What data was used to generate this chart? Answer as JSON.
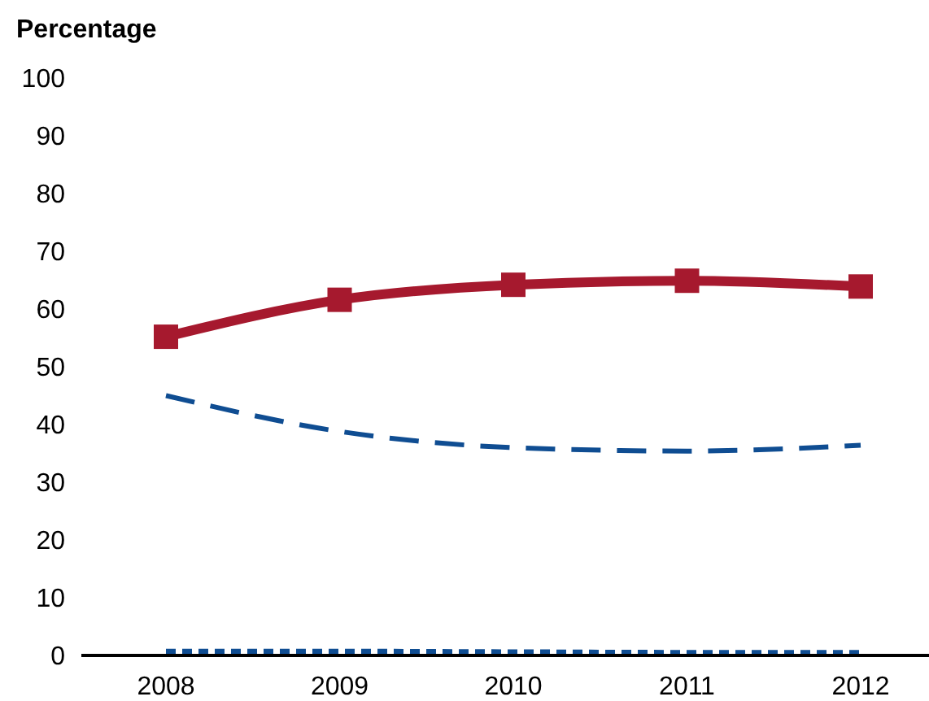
{
  "chart_data": {
    "type": "line",
    "ylabel": "Percentage",
    "categories": [
      "2008",
      "2009",
      "2010",
      "2011",
      "2012"
    ],
    "ylim": [
      0,
      100
    ],
    "yticks": [
      0,
      10,
      20,
      30,
      40,
      50,
      60,
      70,
      80,
      90,
      100
    ],
    "series": [
      {
        "color": "#a6192e",
        "marker": "square",
        "line_style": "solid",
        "values": [
          55.2,
          61.6,
          64.2,
          64.9,
          63.9
        ]
      },
      {
        "color": "#0f4d92",
        "marker": "none",
        "line_style": "dashed",
        "values": [
          45.0,
          38.8,
          36.0,
          35.4,
          36.4
        ]
      },
      {
        "color": "#0f4d92",
        "marker": "none",
        "line_style": "dotted",
        "values": [
          0.6,
          0.6,
          0.5,
          0.4,
          0.4
        ]
      }
    ]
  }
}
